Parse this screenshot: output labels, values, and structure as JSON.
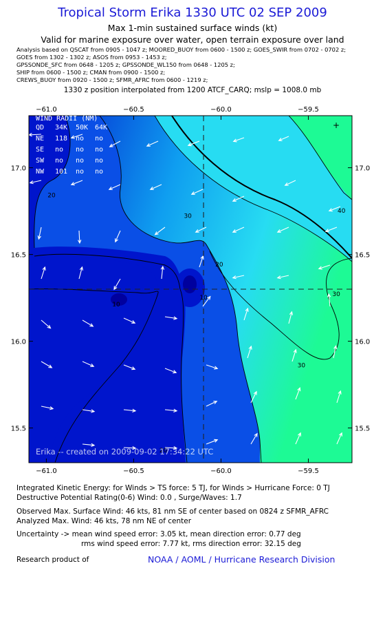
{
  "header": {
    "title": "Tropical Storm Erika 1330 UTC 02 SEP 2009",
    "line1": "Max 1-min sustained surface winds (kt)",
    "line2": "Valid for marine exposure over water, open terrain exposure over land",
    "analysis": [
      "Analysis based on  QSCAT from 0905 - 1047 z;  MOORED_BUOY from 0600 - 1500 z;  GOES_SWIR from 0702 - 0702 z;",
      "GOES from 1302 - 1302 z;  ASOS from 0953 - 1453 z;",
      "GPSSONDE_SFC from 0648 - 1205 z;  GPSSONDE_WL150 from 0648 - 1205 z;",
      "SHIP from 0600 - 1500 z;  CMAN from 0900 - 1500 z;",
      "CREWS_BUOY from 0920 - 1500 z;  SFMR_AFRC from 0600 - 1219 z;"
    ],
    "position_note": "1330 z position interpolated from 1200 ATCF_CARQ; mslp = 1008.0 mb"
  },
  "wind_radii": {
    "title": "WIND RADII (NM)",
    "header": [
      "QD",
      "34K",
      "50K",
      "64K"
    ],
    "rows": [
      [
        "NE",
        "118",
        "no",
        "no"
      ],
      [
        "SE",
        "no",
        "no",
        "no"
      ],
      [
        "SW",
        "no",
        "no",
        "no"
      ],
      [
        "NW",
        "101",
        "no",
        "no"
      ]
    ]
  },
  "watermark": "Erika -- created on 2009-09-02 17:34:22 UTC",
  "chart_data": {
    "type": "heatmap",
    "title": "Tropical Storm Erika 1330 UTC 02 SEP 2009",
    "subtitle": "Max 1-min sustained surface winds (kt)",
    "xlabel": "",
    "ylabel": "",
    "xlim": [
      -61.1,
      -59.25
    ],
    "ylim": [
      15.3,
      17.3
    ],
    "x_ticks": [
      -61.0,
      -60.5,
      -60.0,
      -59.5
    ],
    "x_tick_labels": [
      "−61.0",
      "−60.5",
      "−60.0",
      "−59.5"
    ],
    "y_ticks": [
      15.5,
      16.0,
      16.5,
      17.0
    ],
    "y_tick_labels": [
      "15.5",
      "16.0",
      "16.5",
      "17.0"
    ],
    "center": {
      "lon": -60.1,
      "lat": 16.3
    },
    "contour_labels": [
      {
        "text": "20",
        "lon": -60.97,
        "lat": 16.83
      },
      {
        "text": "30",
        "lon": -60.19,
        "lat": 16.71
      },
      {
        "text": "40",
        "lon": -59.31,
        "lat": 16.74
      },
      {
        "text": "30",
        "lon": -59.34,
        "lat": 16.26
      },
      {
        "text": "30",
        "lon": -59.54,
        "lat": 15.85
      },
      {
        "text": "20",
        "lon": -60.01,
        "lat": 16.43
      },
      {
        "text": "10",
        "lon": -60.1,
        "lat": 16.24
      },
      {
        "text": "10",
        "lon": -60.6,
        "lat": 16.2
      },
      {
        "text": "20",
        "lon": -60.33,
        "lat": 15.36
      }
    ],
    "grid": true,
    "colors": {
      "band_0_10": "#0015cc",
      "band_10_20": "#0a4fe6",
      "band_20_30": "#0f9ef0",
      "band_30_40": "#27dcf2",
      "band_40_50": "#1dfa95",
      "core": "#00009e",
      "arrow": "#ffffff",
      "contour": "#000000"
    }
  },
  "footer": {
    "ike": "Integrated Kinetic Energy:  for Winds > TS force: 5 TJ,  for Winds > Hurricane Force: 0 TJ",
    "dp": "Destructive Potential Rating(0-6)   Wind: 0.0 , Surge/Waves: 1.7",
    "obs": "Observed Max. Surface Wind: 46 kts, 81 nm SE of center based on 0824 z SFMR_AFRC",
    "anl": "Analyzed Max. Wind: 46 kts, 78 nm NE of center",
    "unc1": "Uncertainty -> mean wind speed error: 3.05 kt,   mean direction error: 0.77 deg",
    "unc2": "rms wind speed error: 7.77 kt,   rms direction error: 32.15 deg",
    "research": "Research product of",
    "org": "NOAA / AOML / Hurricane Research Division"
  }
}
